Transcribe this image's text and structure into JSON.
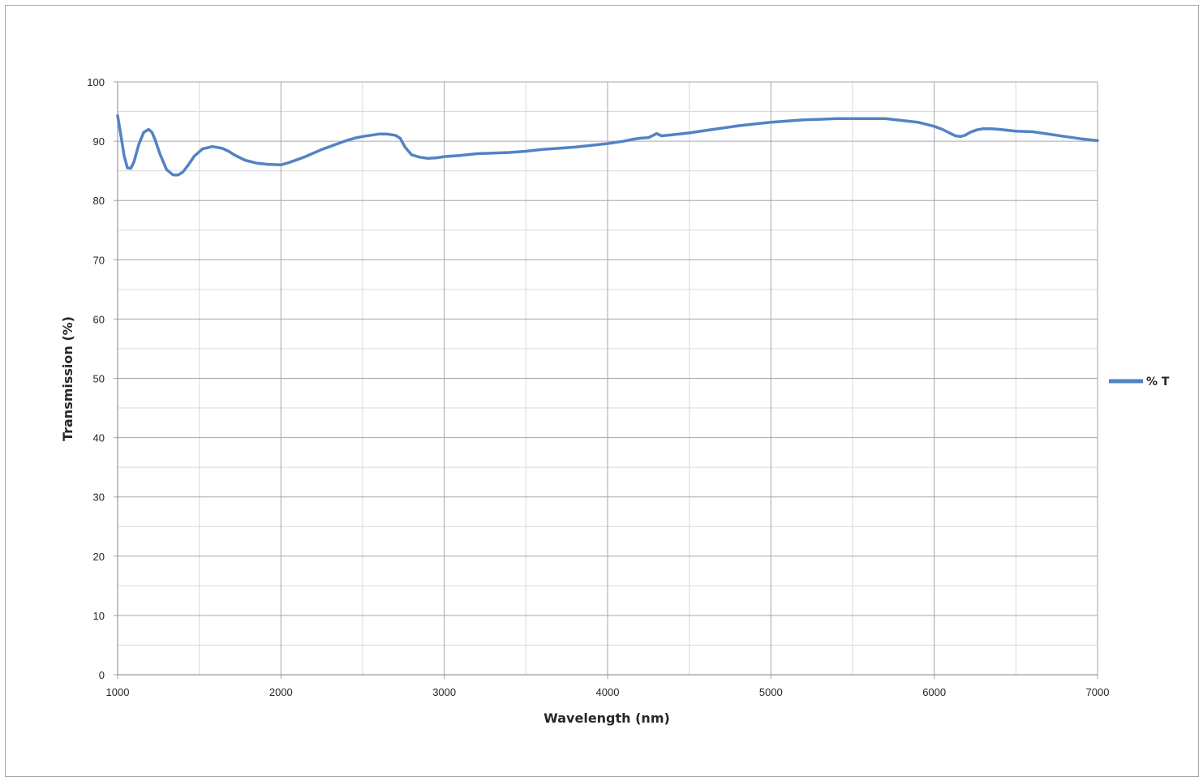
{
  "chart_data": {
    "type": "line",
    "title": "",
    "xlabel": "Wavelength (nm)",
    "ylabel": "Transmission (%)",
    "xlim": [
      1000,
      7000
    ],
    "ylim": [
      0,
      100
    ],
    "x_ticks": [
      1000,
      2000,
      3000,
      4000,
      5000,
      6000,
      7000
    ],
    "x_minor_step": 500,
    "y_ticks": [
      0,
      10,
      20,
      30,
      40,
      50,
      60,
      70,
      80,
      90,
      100
    ],
    "y_minor_step": 5,
    "grid": true,
    "legend_position": "right",
    "colors": {
      "series": "#5283c3",
      "grid": "#a6a6a6",
      "axis": "#868686"
    },
    "series": [
      {
        "name": "% T",
        "x": [
          1000,
          1020,
          1040,
          1060,
          1080,
          1100,
          1130,
          1160,
          1190,
          1210,
          1230,
          1260,
          1300,
          1340,
          1370,
          1400,
          1430,
          1470,
          1520,
          1580,
          1640,
          1680,
          1720,
          1780,
          1850,
          1920,
          2000,
          2050,
          2100,
          2150,
          2200,
          2250,
          2300,
          2350,
          2400,
          2450,
          2500,
          2550,
          2600,
          2650,
          2700,
          2730,
          2760,
          2800,
          2850,
          2900,
          2950,
          3000,
          3100,
          3200,
          3300,
          3400,
          3500,
          3600,
          3700,
          3800,
          3900,
          4000,
          4100,
          4150,
          4200,
          4250,
          4280,
          4300,
          4330,
          4400,
          4500,
          4600,
          4700,
          4800,
          4900,
          5000,
          5100,
          5200,
          5300,
          5400,
          5500,
          5600,
          5700,
          5800,
          5900,
          6000,
          6050,
          6100,
          6130,
          6160,
          6190,
          6220,
          6260,
          6300,
          6350,
          6400,
          6500,
          6600,
          6700,
          6800,
          6900,
          7000
        ],
        "y": [
          94.3,
          91,
          87.5,
          85.5,
          85.4,
          86.5,
          89.5,
          91.5,
          92,
          91.5,
          90.2,
          87.8,
          85.2,
          84.3,
          84.3,
          84.8,
          85.9,
          87.5,
          88.7,
          89.1,
          88.8,
          88.3,
          87.6,
          86.8,
          86.3,
          86.1,
          86.0,
          86.4,
          86.9,
          87.4,
          88.0,
          88.6,
          89.1,
          89.6,
          90.1,
          90.5,
          90.8,
          91.0,
          91.2,
          91.2,
          91.0,
          90.5,
          89.0,
          87.7,
          87.3,
          87.1,
          87.2,
          87.4,
          87.6,
          87.9,
          88.0,
          88.1,
          88.3,
          88.6,
          88.8,
          89.0,
          89.3,
          89.6,
          90.0,
          90.3,
          90.5,
          90.6,
          91.0,
          91.3,
          90.9,
          91.1,
          91.4,
          91.8,
          92.2,
          92.6,
          92.9,
          93.2,
          93.4,
          93.6,
          93.7,
          93.8,
          93.8,
          93.8,
          93.8,
          93.5,
          93.2,
          92.5,
          92.0,
          91.3,
          90.9,
          90.8,
          91.0,
          91.5,
          91.9,
          92.1,
          92.1,
          92.0,
          91.7,
          91.6,
          91.2,
          90.8,
          90.4,
          90.1
        ]
      }
    ]
  }
}
